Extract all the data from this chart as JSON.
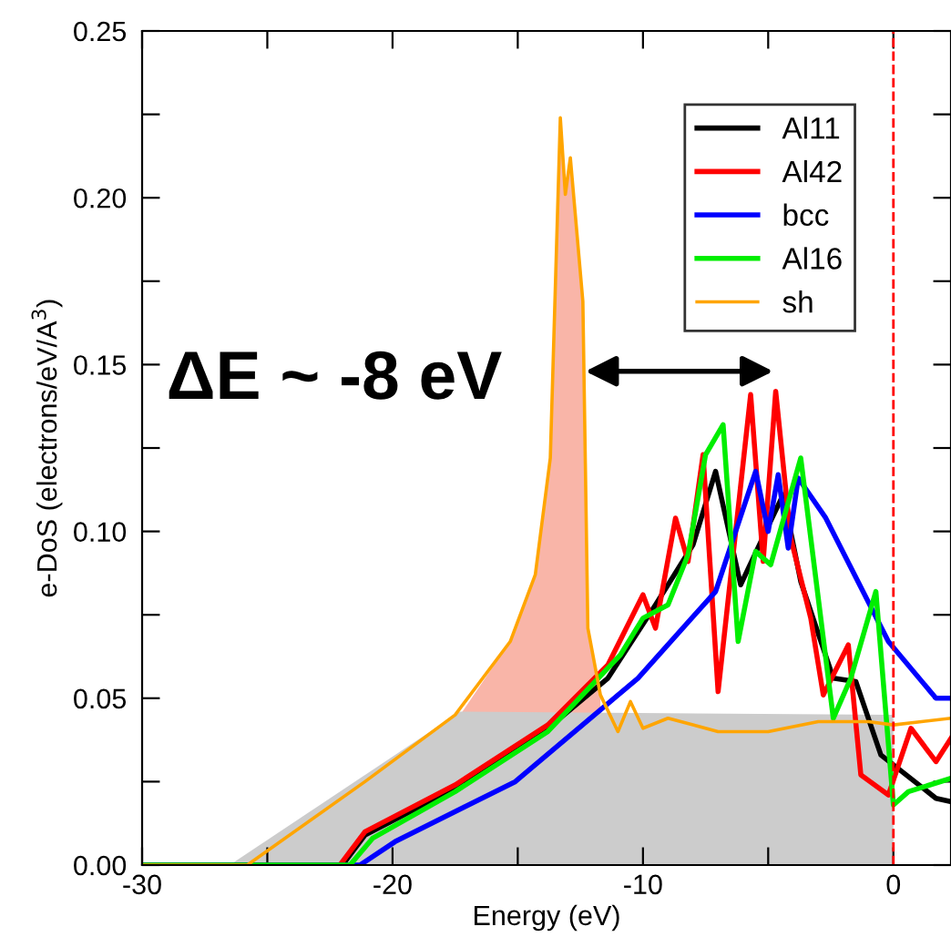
{
  "chart_data": {
    "type": "line",
    "xlabel": "Energy (eV)",
    "ylabel": "e-DoS (electrons/eV/A$^{3}$)",
    "xlim": [
      -30,
      2.3
    ],
    "ylim": [
      0,
      0.25
    ],
    "xticks": [
      -30,
      {
        "value": -25,
        "label": null
      },
      -20,
      {
        "value": -15,
        "label": null
      },
      -10,
      {
        "value": -5,
        "label": null
      },
      0
    ],
    "yticks": [
      {
        "value": 0,
        "label": "0.00"
      },
      {
        "value": 0.025,
        "label": null
      },
      {
        "value": 0.05,
        "label": "0.05"
      },
      {
        "value": 0.075,
        "label": null
      },
      {
        "value": 0.1,
        "label": "0.10"
      },
      {
        "value": 0.125,
        "label": null
      },
      {
        "value": 0.15,
        "label": "0.15"
      },
      {
        "value": 0.175,
        "label": null
      },
      {
        "value": 0.2,
        "label": "0.20"
      },
      {
        "value": 0.225,
        "label": null
      },
      {
        "value": 0.25,
        "label": "0.25"
      }
    ],
    "grid": false,
    "legend": "top right",
    "marker": "none",
    "line_style": "solid",
    "ref_lines": [
      {
        "axis": "x",
        "value": 0,
        "color": "#ff0000",
        "line_style": "dashed"
      }
    ],
    "annotations": [
      "ΔE ~ -8 eV"
    ],
    "series": [
      {
        "type": "area",
        "color": "#f9b5a8",
        "x": [
          -17.3,
          -15.3,
          -14.3,
          -13.7,
          -13.3,
          -13.1,
          -12.9,
          -12.4,
          -12.2,
          -11.7
        ],
        "values": [
          0.045,
          0.067,
          0.087,
          0.122,
          0.224,
          0.201,
          0.212,
          0.169,
          0.071,
          0.051
        ]
      },
      {
        "type": "area",
        "color": "#cccccc",
        "x": [
          -26.5,
          -17.3,
          0
        ],
        "values": [
          0,
          0.046,
          0.045
        ]
      },
      {
        "name": "Al11",
        "color": "#000000",
        "x": [
          -30,
          -22.0,
          -21.1,
          -17.5,
          -13.8,
          -11.4,
          -9.5,
          -8.0,
          -7.1,
          -6.1,
          -5.1,
          -4.4,
          -3.7,
          -2.4,
          -1.5,
          -0.5,
          1.7,
          2.3
        ],
        "values": [
          0,
          0,
          0.009,
          0.023,
          0.041,
          0.056,
          0.078,
          0.096,
          0.118,
          0.084,
          0.1,
          0.111,
          0.085,
          0.056,
          0.055,
          0.033,
          0.02,
          0.019
        ]
      },
      {
        "name": "Al42",
        "color": "#ff0000",
        "x": [
          -30,
          -22.1,
          -21.1,
          -17.5,
          -13.8,
          -11.4,
          -10.0,
          -9.5,
          -8.7,
          -8.2,
          -7.6,
          -7.0,
          -5.7,
          -5.2,
          -4.7,
          -4.1,
          -3.3,
          -2.8,
          -1.8,
          -1.3,
          -0.2,
          0.7,
          1.7,
          2.3
        ],
        "values": [
          0,
          0,
          0.01,
          0.024,
          0.042,
          0.06,
          0.081,
          0.071,
          0.104,
          0.091,
          0.123,
          0.052,
          0.141,
          0.091,
          0.142,
          0.098,
          0.074,
          0.051,
          0.066,
          0.027,
          0.021,
          0.041,
          0.031,
          0.038
        ]
      },
      {
        "name": "bcc",
        "color": "#0000ff",
        "x": [
          -30,
          -21.3,
          -19.9,
          -15.1,
          -10.2,
          -7.1,
          -5.5,
          -5.0,
          -4.6,
          -4.2,
          -3.8,
          -2.7,
          -0.2,
          1.7,
          2.3
        ],
        "values": [
          0,
          0,
          0.007,
          0.025,
          0.056,
          0.082,
          0.118,
          0.1,
          0.117,
          0.095,
          0.116,
          0.104,
          0.067,
          0.05,
          0.05
        ]
      },
      {
        "name": "Al16",
        "color": "#00ee00",
        "x": [
          -30,
          -21.7,
          -20.8,
          -17.5,
          -13.8,
          -10.9,
          -10.0,
          -9.0,
          -8.2,
          -7.5,
          -6.8,
          -6.2,
          -5.5,
          -4.9,
          -3.7,
          -2.4,
          -1.7,
          -0.7,
          0,
          0.6,
          2.3
        ],
        "values": [
          0,
          0,
          0.008,
          0.022,
          0.04,
          0.063,
          0.074,
          0.078,
          0.093,
          0.123,
          0.132,
          0.067,
          0.094,
          0.09,
          0.122,
          0.044,
          0.056,
          0.082,
          0.018,
          0.022,
          0.026
        ]
      },
      {
        "name": "sh",
        "color": "#ffa500",
        "x": [
          -30,
          -25.8,
          -21.1,
          -17.5,
          -15.3,
          -14.3,
          -13.7,
          -13.3,
          -13.1,
          -12.9,
          -12.4,
          -12.2,
          -11.7,
          -11.0,
          -10.5,
          -10.0,
          -9.0,
          -7.0,
          -5.0,
          -3.0,
          -1.0,
          0,
          2.3
        ],
        "values": [
          0,
          0,
          0.025,
          0.045,
          0.067,
          0.087,
          0.122,
          0.224,
          0.201,
          0.212,
          0.169,
          0.071,
          0.051,
          0.04,
          0.049,
          0.041,
          0.044,
          0.04,
          0.04,
          0.043,
          0.043,
          0.042,
          0.044
        ]
      }
    ]
  }
}
